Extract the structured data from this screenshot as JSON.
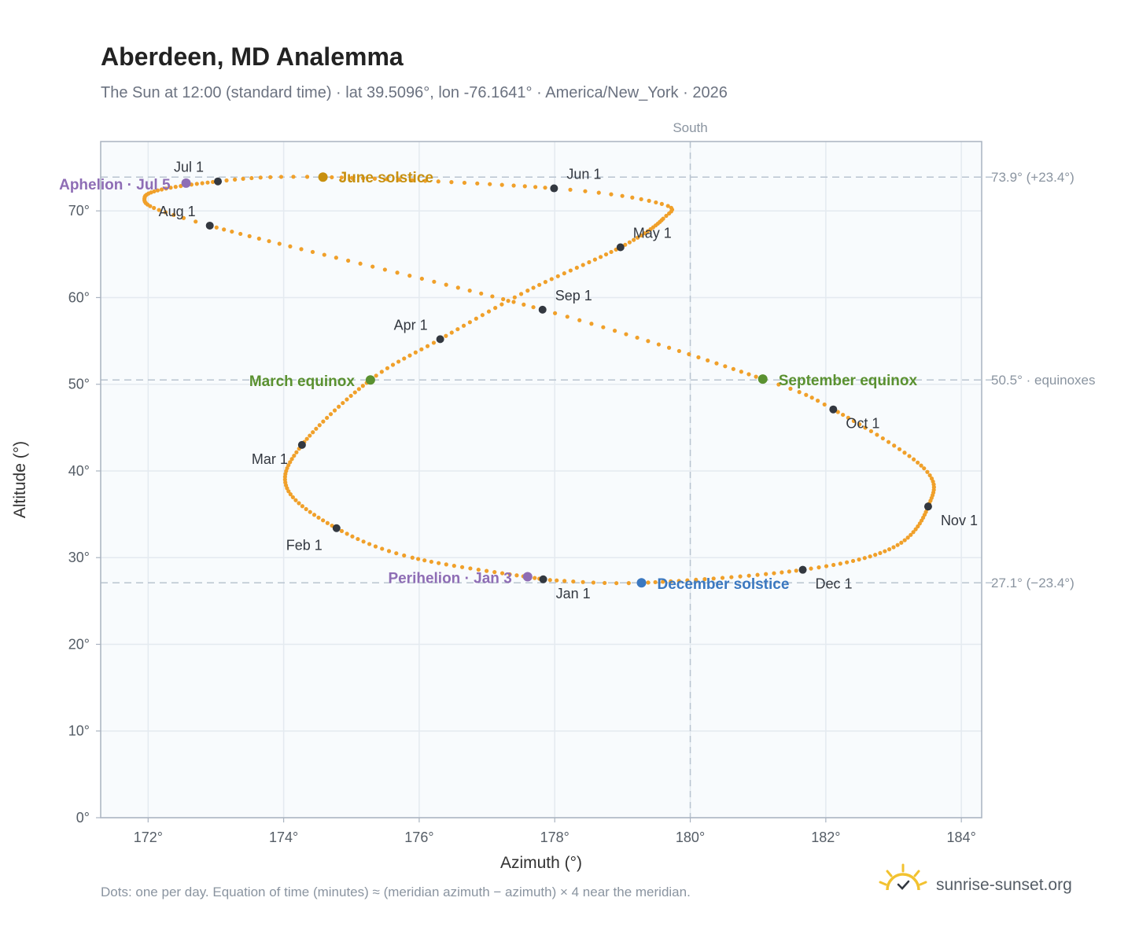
{
  "chart_data": {
    "type": "scatter",
    "title": "Aberdeen, MD Analemma",
    "subtitle": "The Sun at 12:00 (standard time) · lat 39.5096°, lon -76.1641° · America/New_York · 2026",
    "xlabel": "Azimuth (°)",
    "ylabel": "Altitude (°)",
    "xlim": [
      171.3,
      184.3
    ],
    "ylim": [
      0,
      78
    ],
    "x_ticks": [
      172,
      174,
      176,
      178,
      180,
      182,
      184
    ],
    "x_tick_labels": [
      "172°",
      "174°",
      "176°",
      "178°",
      "180°",
      "182°",
      "184°"
    ],
    "y_ticks": [
      0,
      10,
      20,
      30,
      40,
      50,
      60,
      70
    ],
    "y_tick_labels": [
      "0°",
      "10°",
      "20°",
      "30°",
      "40°",
      "50°",
      "60°",
      "70°"
    ],
    "grid": true,
    "meridian": {
      "azimuth": 180,
      "label": "South"
    },
    "reference_lines": [
      {
        "altitude": 73.9,
        "label": "73.9° (+23.4°)"
      },
      {
        "altitude": 50.5,
        "label": "50.5° · equinoxes"
      },
      {
        "altitude": 27.1,
        "label": "27.1° (−23.4°)"
      }
    ],
    "month_markers": [
      {
        "label": "Jan 1",
        "azimuth": 177.83,
        "altitude": 27.5
      },
      {
        "label": "Feb 1",
        "azimuth": 174.78,
        "altitude": 33.4
      },
      {
        "label": "Mar 1",
        "azimuth": 174.27,
        "altitude": 43.0
      },
      {
        "label": "Apr 1",
        "azimuth": 176.31,
        "altitude": 55.2
      },
      {
        "label": "May 1",
        "azimuth": 178.97,
        "altitude": 65.8
      },
      {
        "label": "Jun 1",
        "azimuth": 177.99,
        "altitude": 72.6
      },
      {
        "label": "Jul 1",
        "azimuth": 173.03,
        "altitude": 73.4
      },
      {
        "label": "Aug 1",
        "azimuth": 172.91,
        "altitude": 68.3
      },
      {
        "label": "Sep 1",
        "azimuth": 177.82,
        "altitude": 58.6
      },
      {
        "label": "Oct 1",
        "azimuth": 182.11,
        "altitude": 47.1
      },
      {
        "label": "Nov 1",
        "azimuth": 183.51,
        "altitude": 35.9
      },
      {
        "label": "Dec 1",
        "azimuth": 181.66,
        "altitude": 28.6
      }
    ],
    "events": [
      {
        "label": "June solstice",
        "azimuth": 174.58,
        "altitude": 73.9,
        "color": "#c8900f"
      },
      {
        "label": "December solstice",
        "azimuth": 179.28,
        "altitude": 27.1,
        "color": "#3b78c0"
      },
      {
        "label": "March equinox",
        "azimuth": 175.28,
        "altitude": 50.5,
        "color": "#5a9130"
      },
      {
        "label": "September equinox",
        "azimuth": 181.07,
        "altitude": 50.6,
        "color": "#5a9130"
      },
      {
        "label": "Aphelion · Jul 5",
        "azimuth": 172.56,
        "altitude": 73.2,
        "color": "#8e6db5"
      },
      {
        "label": "Perihelion · Jan 3",
        "azimuth": 177.6,
        "altitude": 27.8,
        "color": "#8e6db5"
      }
    ],
    "daily_path_keypoints": [
      {
        "day": 1,
        "azimuth": 177.83,
        "altitude": 27.5
      },
      {
        "day": 20,
        "azimuth": 175.9,
        "altitude": 30.0
      },
      {
        "day": 32,
        "azimuth": 174.78,
        "altitude": 33.4
      },
      {
        "day": 46,
        "azimuth": 174.05,
        "altitude": 38.0
      },
      {
        "day": 60,
        "azimuth": 174.27,
        "altitude": 43.0
      },
      {
        "day": 79,
        "azimuth": 175.28,
        "altitude": 50.5
      },
      {
        "day": 91,
        "azimuth": 176.31,
        "altitude": 55.2
      },
      {
        "day": 105,
        "azimuth": 177.6,
        "altitude": 60.8
      },
      {
        "day": 121,
        "azimuth": 178.97,
        "altitude": 65.8
      },
      {
        "day": 135,
        "azimuth": 179.6,
        "altitude": 69.1
      },
      {
        "day": 142,
        "azimuth": 179.58,
        "altitude": 70.8
      },
      {
        "day": 152,
        "azimuth": 177.99,
        "altitude": 72.6
      },
      {
        "day": 172,
        "azimuth": 174.58,
        "altitude": 73.9
      },
      {
        "day": 182,
        "azimuth": 173.03,
        "altitude": 73.4
      },
      {
        "day": 200,
        "azimuth": 171.95,
        "altitude": 71.6
      },
      {
        "day": 213,
        "azimuth": 172.91,
        "altitude": 68.3
      },
      {
        "day": 244,
        "azimuth": 177.82,
        "altitude": 58.6
      },
      {
        "day": 266,
        "azimuth": 181.07,
        "altitude": 50.6
      },
      {
        "day": 274,
        "azimuth": 182.11,
        "altitude": 47.1
      },
      {
        "day": 292,
        "azimuth": 183.45,
        "altitude": 40.3
      },
      {
        "day": 305,
        "azimuth": 183.51,
        "altitude": 35.9
      },
      {
        "day": 320,
        "azimuth": 183.0,
        "altitude": 31.2
      },
      {
        "day": 335,
        "azimuth": 181.66,
        "altitude": 28.6
      },
      {
        "day": 355,
        "azimuth": 179.28,
        "altitude": 27.1
      },
      {
        "day": 365,
        "azimuth": 177.85,
        "altitude": 27.45
      }
    ],
    "footnote": "Dots: one per day. Equation of time (minutes) ≈ (meridian azimuth − azimuth) × 4 near the meridian.",
    "brand": "sunrise-sunset.org",
    "colors": {
      "path": "#f0a02a",
      "marker": "#333840",
      "grid": "#e4eaf0",
      "frame": "#a9b3c0",
      "plot_bg": "#f8fbfd",
      "reference": "#b9c4d0"
    }
  }
}
